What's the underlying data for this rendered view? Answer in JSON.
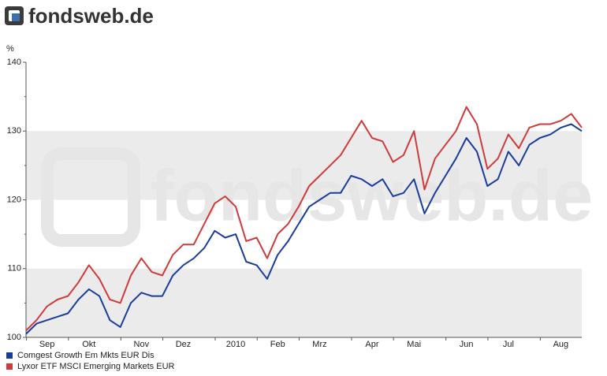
{
  "logo": "fondsweb.de",
  "chart_data": {
    "type": "line",
    "y_label": "%",
    "categories": [
      null,
      null,
      "Sep",
      null,
      null,
      null,
      "Okt",
      null,
      null,
      null,
      null,
      "Nov",
      null,
      null,
      null,
      "Dez",
      null,
      null,
      null,
      null,
      "2010",
      null,
      null,
      null,
      "Feb",
      null,
      null,
      null,
      "Mrz",
      null,
      null,
      null,
      null,
      "Apr",
      null,
      null,
      null,
      "Mai",
      null,
      null,
      null,
      null,
      "Jun",
      null,
      null,
      null,
      "Jul",
      null,
      null,
      null,
      null,
      "Aug",
      null,
      null
    ],
    "series": [
      {
        "name": "Comgest Growth Em Mkts EUR Dis",
        "color": "#1a3c9a",
        "values": [
          100.5,
          102,
          102.5,
          103,
          103.5,
          105.5,
          107,
          106,
          102.5,
          101.5,
          105,
          106.5,
          106,
          106,
          109,
          110.5,
          111.5,
          113,
          115.5,
          114.5,
          115,
          111,
          110.5,
          108.5,
          112,
          114,
          116.5,
          119,
          120,
          121,
          121,
          123.5,
          123,
          122,
          123,
          120.5,
          121,
          123,
          118,
          121,
          123.5,
          126,
          129,
          127,
          122,
          123,
          127,
          125,
          128,
          129,
          129.5,
          130.5,
          131,
          130
        ]
      },
      {
        "name": "Lyxor ETF MSCI Emerging Markets EUR",
        "color": "#cf3a3a",
        "values": [
          101,
          102.5,
          104.5,
          105.5,
          106,
          108,
          110.5,
          108.5,
          105.5,
          105,
          109,
          111.5,
          109.5,
          109,
          112,
          113.5,
          113.5,
          116.5,
          119.5,
          120.5,
          119,
          114,
          114.5,
          111.5,
          115,
          116.5,
          119,
          122,
          123.5,
          125,
          126.5,
          129,
          131.5,
          129,
          128.5,
          125.5,
          126.5,
          130,
          121.5,
          126,
          128,
          130,
          133.5,
          131,
          124.5,
          126,
          129.5,
          127.5,
          130.5,
          131,
          131,
          131.5,
          132.5,
          130.5
        ]
      }
    ],
    "ylim": [
      100,
      140
    ],
    "yticks": [
      100,
      110,
      120,
      130,
      140
    ],
    "grid": "bands",
    "legend": "bottom-left"
  }
}
